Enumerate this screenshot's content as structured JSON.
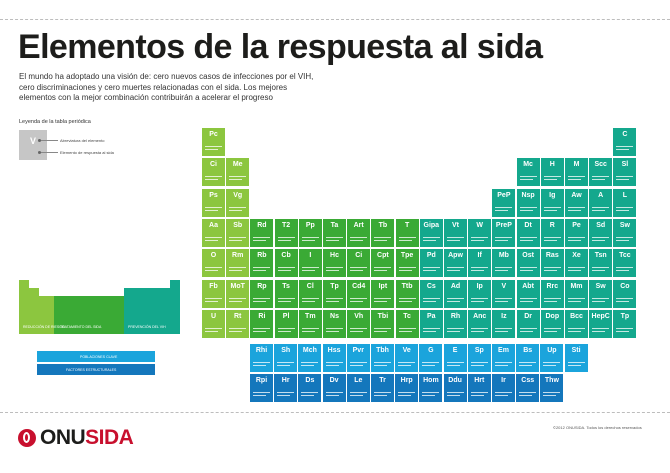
{
  "title": "Elementos de la respuesta al sida",
  "intro": "El mundo ha adoptado una visión de: cero nuevos casos de infecciones por el VIH, cero discriminaciones y cero muertes relacionadas con el sida. Los mejores elementos con la mejor combinación contribuirán a acelerar el progreso",
  "legend": {
    "title": "Leyenda de la tabla periódica",
    "sample_symbol": "V",
    "item1": "Abreviatura del elemento",
    "item2": "Elemento de respuesta al sida"
  },
  "colors": {
    "lime": "#8cc63f",
    "green": "#3aaa35",
    "teal": "#14a88d",
    "sky": "#1ba4dc",
    "blue": "#1477bc"
  },
  "periodic_table": {
    "groups": [
      {
        "color": "lime",
        "col": 0,
        "row": 0,
        "symbols": [
          "Pc",
          "Ci",
          "Ps",
          "Aa",
          "O",
          "Fb",
          "U"
        ]
      },
      {
        "color": "lime",
        "col": 1,
        "row": 1,
        "symbols": [
          "Me",
          "Vg",
          "Sb",
          "Rm",
          "MoT",
          "Rt"
        ]
      },
      {
        "color": "green",
        "col": 2,
        "row": 3,
        "symbols": [
          "Rd",
          "Rb",
          "Rp",
          "Ri"
        ]
      },
      {
        "color": "green",
        "col": 3,
        "row": 3,
        "symbols": [
          "T2",
          "Cb",
          "Ts",
          "Pl"
        ]
      },
      {
        "color": "green",
        "col": 4,
        "row": 3,
        "symbols": [
          "Pp",
          "I",
          "Cl",
          "Tm"
        ]
      },
      {
        "color": "green",
        "col": 5,
        "row": 3,
        "symbols": [
          "Ta",
          "Hc",
          "Tp",
          "Ns"
        ]
      },
      {
        "color": "green",
        "col": 6,
        "row": 3,
        "symbols": [
          "Art",
          "Ci",
          "Cd4",
          "Vh"
        ]
      },
      {
        "color": "green",
        "col": 7,
        "row": 3,
        "symbols": [
          "Tb",
          "Cpt",
          "Ipt",
          "Tbi"
        ]
      },
      {
        "color": "green",
        "col": 8,
        "row": 3,
        "symbols": [
          "T",
          "Tpe",
          "Ttb",
          "Tc"
        ]
      },
      {
        "color": "teal",
        "col": 9,
        "row": 3,
        "symbols": [
          "Gipa",
          "Pd",
          "Cs",
          "Pa"
        ]
      },
      {
        "color": "teal",
        "col": 10,
        "row": 3,
        "symbols": [
          "Vt",
          "Apw",
          "Ad",
          "Rh"
        ]
      },
      {
        "color": "teal",
        "col": 11,
        "row": 3,
        "symbols": [
          "W",
          "If",
          "Ip",
          "Anc"
        ]
      },
      {
        "color": "teal",
        "col": 12,
        "row": 2,
        "symbols": [
          "PeP",
          "PreP",
          "Mb",
          "V",
          "Iz"
        ]
      },
      {
        "color": "teal",
        "col": 13,
        "row": 1,
        "symbols": [
          "Mc",
          "Nsp",
          "Dt",
          "Ost",
          "Abt",
          "Dr"
        ]
      },
      {
        "color": "teal",
        "col": 14,
        "row": 1,
        "symbols": [
          "H",
          "Ig",
          "R",
          "Ras",
          "Rrc",
          "Dop"
        ]
      },
      {
        "color": "teal",
        "col": 15,
        "row": 1,
        "symbols": [
          "M",
          "Aw",
          "Pe",
          "Xe",
          "Mm",
          "Bcc"
        ]
      },
      {
        "color": "teal",
        "col": 16,
        "row": 1,
        "symbols": [
          "Scc",
          "A",
          "Sd",
          "Tsn",
          "Sw",
          "HepC"
        ]
      },
      {
        "color": "teal",
        "col": 17,
        "row": 0,
        "symbols": [
          "C",
          "Sl",
          "L",
          "Sw",
          "Tcc",
          "Co",
          "Tp"
        ]
      }
    ],
    "f_row1": {
      "color": "sky",
      "symbols": [
        "Rhi",
        "Sh",
        "Mch",
        "Hss",
        "Pvr",
        "Tbh",
        "Ve",
        "G",
        "E",
        "Sp",
        "Em",
        "Bs",
        "Up",
        "Sti"
      ]
    },
    "f_row2": {
      "color": "blue",
      "symbols": [
        "Rpi",
        "Hr",
        "Ds",
        "Dv",
        "Le",
        "Tr",
        "Hrp",
        "Hom",
        "Ddu",
        "Hrt",
        "Ir",
        "Css",
        "Thw"
      ]
    }
  },
  "mini_table": {
    "label_left": "REDUCCIÓN DE RIESGO",
    "label_mid": "TRATAMIENTO DEL SIDA",
    "label_right": "PREVENCIÓN DEL VIH",
    "bar1": "POBLACIONES CLAVE",
    "bar2": "FACTORES ESTRUCTURALES"
  },
  "footer": {
    "logo_main": "ONU",
    "logo_accent": "SIDA",
    "copyright": "©2012 ONUSIDA. Todos los derechos reservados"
  }
}
